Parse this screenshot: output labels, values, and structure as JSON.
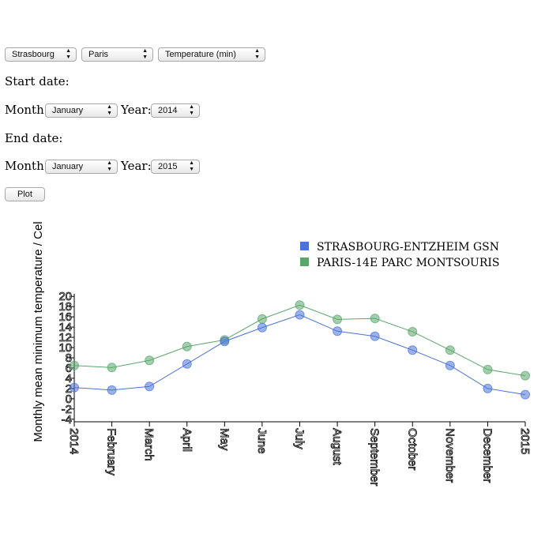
{
  "controls": {
    "station1": "Strasbourg",
    "station2": "Paris",
    "variable": "Temperature (min)",
    "start_label": "Start date:",
    "end_label": "End date:",
    "month_label": "Month:",
    "year_label": "Year:",
    "start_month": "January",
    "start_year": "2014",
    "end_month": "January",
    "end_year": "2015",
    "plot_button": "Plot"
  },
  "colors": {
    "series1": "#4a72d9",
    "series2": "#5aa66a"
  },
  "chart_data": {
    "type": "line",
    "ylabel": "Monthly mean minimum temperature / Cel",
    "xlabel": "",
    "categories": [
      "2014",
      "February",
      "March",
      "April",
      "May",
      "June",
      "July",
      "August",
      "September",
      "October",
      "November",
      "December",
      "2015"
    ],
    "yticks": [
      20,
      18,
      16,
      14,
      12,
      10,
      8,
      6,
      4,
      2,
      0,
      -2,
      -4
    ],
    "ytick_labels": [
      "20",
      "18",
      "16",
      "14",
      "12",
      "10",
      "8",
      "6",
      "4",
      "2",
      "0",
      "-2",
      "-4"
    ],
    "ylim": [
      -4.5,
      21
    ],
    "legend_position": "top-right",
    "series": [
      {
        "name": "STRASBOURG-ENTZHEIM GSN",
        "color": "#4a72d9",
        "values": [
          2.2,
          1.7,
          2.4,
          6.8,
          11.2,
          13.9,
          16.4,
          13.2,
          12.2,
          9.5,
          6.5,
          2.0,
          0.8
        ]
      },
      {
        "name": "PARIS-14E PARC MONTSOURIS",
        "color": "#5aa66a",
        "values": [
          6.5,
          6.1,
          7.5,
          10.2,
          11.5,
          15.6,
          18.3,
          15.5,
          15.7,
          13.1,
          9.5,
          5.7,
          4.5
        ]
      }
    ]
  }
}
